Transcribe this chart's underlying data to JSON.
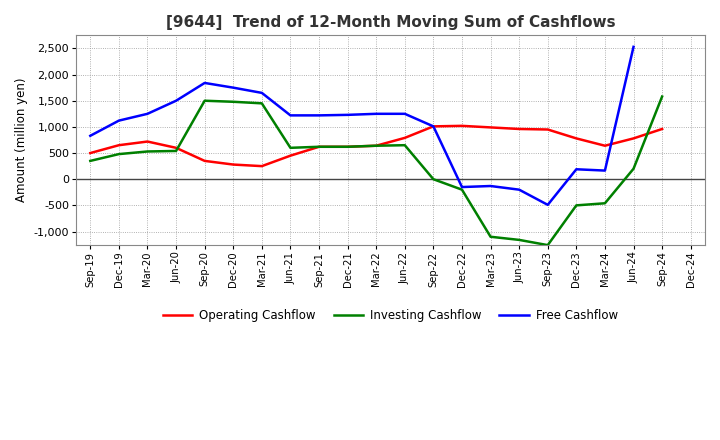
{
  "title": "[9644]  Trend of 12-Month Moving Sum of Cashflows",
  "ylabel": "Amount (million yen)",
  "labels": [
    "Sep-19",
    "Dec-19",
    "Mar-20",
    "Jun-20",
    "Sep-20",
    "Dec-20",
    "Mar-21",
    "Jun-21",
    "Sep-21",
    "Dec-21",
    "Mar-22",
    "Jun-22",
    "Sep-22",
    "Dec-22",
    "Mar-23",
    "Jun-23",
    "Sep-23",
    "Dec-23",
    "Mar-24",
    "Jun-24",
    "Sep-24",
    "Dec-24"
  ],
  "operating": [
    500,
    650,
    720,
    600,
    350,
    280,
    250,
    450,
    620,
    620,
    640,
    790,
    1010,
    1020,
    990,
    960,
    950,
    780,
    640,
    780,
    960,
    null
  ],
  "investing": [
    350,
    480,
    530,
    540,
    1500,
    1480,
    1450,
    600,
    620,
    620,
    640,
    650,
    0,
    -200,
    -1100,
    -1160,
    -1260,
    -500,
    -460,
    200,
    1580,
    null
  ],
  "free": [
    830,
    1120,
    1250,
    1500,
    1840,
    1750,
    1650,
    1220,
    1220,
    1230,
    1250,
    1250,
    1010,
    -150,
    -130,
    -200,
    -490,
    190,
    165,
    2530,
    null,
    null
  ],
  "operating_color": "#ff0000",
  "investing_color": "#008000",
  "free_color": "#0000ff",
  "ylim": [
    -1250,
    2750
  ],
  "yticks": [
    -1000,
    -500,
    0,
    500,
    1000,
    1500,
    2000,
    2500
  ],
  "bg_color": "#ffffff",
  "grid_color": "#999999",
  "linewidth": 1.8,
  "title_color": "#333333"
}
